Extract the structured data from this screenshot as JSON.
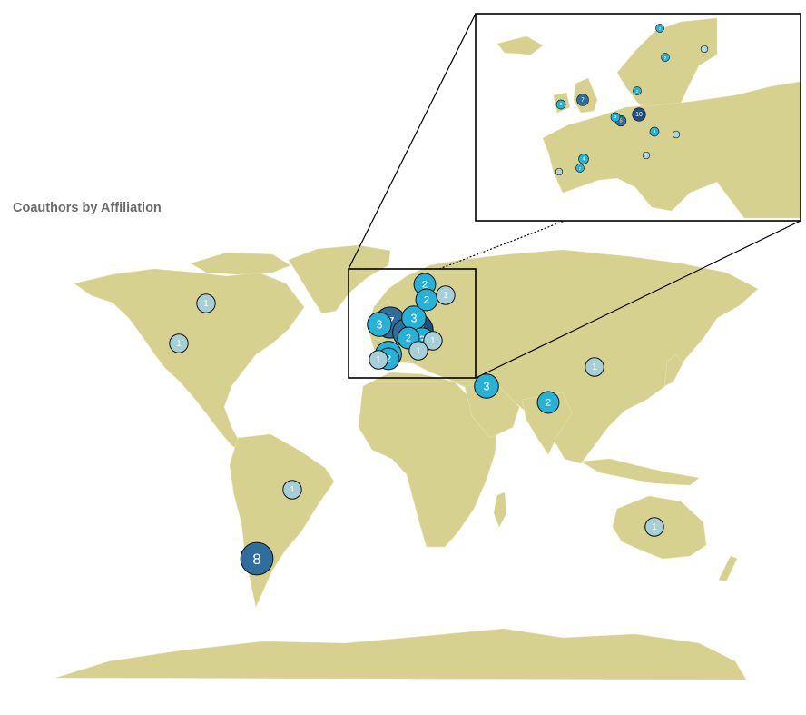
{
  "title": "Coauthors by Affiliation",
  "colors": {
    "land": "#d6d18f",
    "low": "#a6cfd8",
    "mid": "#27b1d6",
    "high": "#2f6e9c",
    "max": "#1d4f82"
  },
  "markers": [
    {
      "name": "Canada",
      "count": 1
    },
    {
      "name": "United States",
      "count": 1
    },
    {
      "name": "Brazil",
      "count": 1
    },
    {
      "name": "Chile",
      "count": 8
    },
    {
      "name": "Norway",
      "count": 2
    },
    {
      "name": "Sweden",
      "count": 2
    },
    {
      "name": "Finland",
      "count": 1
    },
    {
      "name": "Ireland",
      "count": 3
    },
    {
      "name": "United Kingdom",
      "count": 7
    },
    {
      "name": "Netherlands",
      "count": 3
    },
    {
      "name": "Belgium",
      "count": 5
    },
    {
      "name": "Luxembourg",
      "count": 2
    },
    {
      "name": "Germany",
      "count": 10
    },
    {
      "name": "Czech Republic",
      "count": 3
    },
    {
      "name": "Poland",
      "count": 1
    },
    {
      "name": "Spain",
      "count": 4
    },
    {
      "name": "Portugal",
      "count": 2
    },
    {
      "name": "Morocco",
      "count": 1
    },
    {
      "name": "Italy",
      "count": 1
    },
    {
      "name": "Iran",
      "count": 3
    },
    {
      "name": "India",
      "count": 2
    },
    {
      "name": "China",
      "count": 1
    },
    {
      "name": "Australia",
      "count": 1
    }
  ]
}
